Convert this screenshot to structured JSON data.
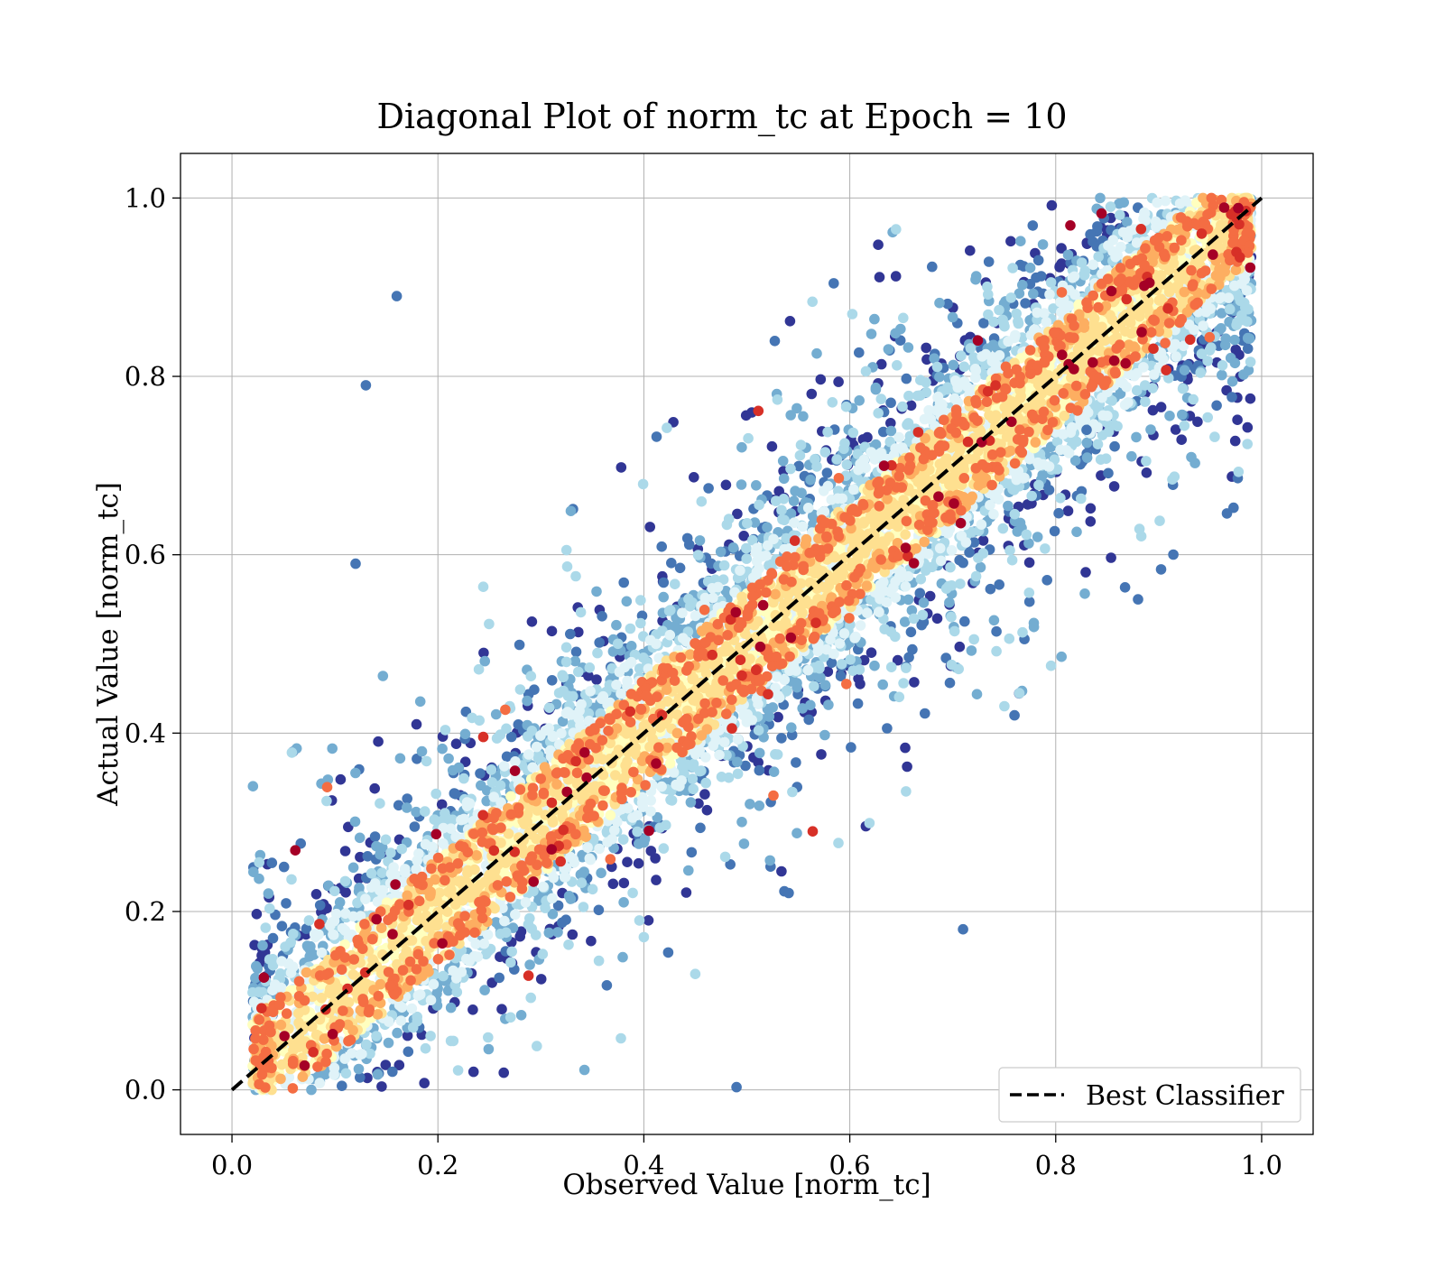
{
  "chart_data": {
    "type": "scatter",
    "title": "Diagonal Plot of norm_tc at Epoch = 10",
    "xlabel": "Observed Value [norm_tc]",
    "ylabel": "Actual Value [norm_tc]",
    "xlim": [
      -0.05,
      1.05
    ],
    "ylim": [
      -0.05,
      1.05
    ],
    "xticks": [
      "0.0",
      "0.2",
      "0.4",
      "0.6",
      "0.8",
      "1.0"
    ],
    "yticks": [
      "0.0",
      "0.2",
      "0.4",
      "0.6",
      "0.8",
      "1.0"
    ],
    "tick_values": [
      0.0,
      0.2,
      0.4,
      0.6,
      0.8,
      1.0
    ],
    "grid": true,
    "legend_position": "lower-right",
    "series": [
      {
        "name": "Best Classifier",
        "kind": "dashed-line",
        "color": "#000000",
        "x": [
          0.0,
          1.0
        ],
        "y": [
          0.0,
          1.0
        ]
      },
      {
        "name": "",
        "kind": "scatter",
        "colormap": "RdYlBu",
        "description_points": [
          {
            "x": 0.13,
            "y": 0.79
          },
          {
            "x": 0.12,
            "y": 0.59
          },
          {
            "x": 0.88,
            "y": 0.55
          },
          {
            "x": 0.71,
            "y": 0.18
          },
          {
            "x": 0.49,
            "y": 0.003
          },
          {
            "x": 0.16,
            "y": 0.89
          },
          {
            "x": 0.76,
            "y": 0.42
          },
          {
            "x": 0.83,
            "y": 0.74
          }
        ]
      }
    ],
    "colors": {
      "palette": [
        "#a50026",
        "#d73027",
        "#f46d43",
        "#fdae61",
        "#fee090",
        "#ffffbf",
        "#e0f3f8",
        "#abd9e9",
        "#74add1",
        "#4575b4",
        "#313695"
      ],
      "grid": "#b0b0b0",
      "diagonal": "#000000"
    }
  }
}
